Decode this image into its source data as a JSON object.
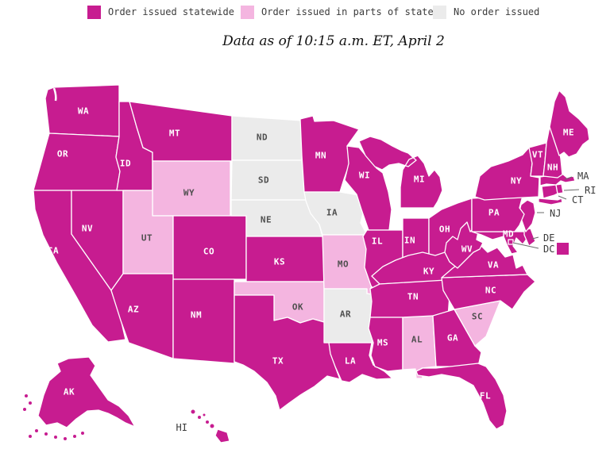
{
  "legend": {
    "items": [
      {
        "key": "statewide",
        "label": "Order issued statewide",
        "color": "#c71c90"
      },
      {
        "key": "parts",
        "label": "Order issued in parts of state",
        "color": "#f4b5e0"
      },
      {
        "key": "none",
        "label": "No order issued",
        "color": "#ebebeb"
      }
    ]
  },
  "subtitle": "Data as of 10:15 a.m. ET, April 2",
  "map": {
    "stroke_color": "#ffffff",
    "label_on_dark": "#ffffff",
    "label_on_light": "#4f4f4f",
    "callout_color": "#3a3a3a",
    "states": [
      {
        "abbr": "WA",
        "category": "statewide"
      },
      {
        "abbr": "OR",
        "category": "statewide"
      },
      {
        "abbr": "CA",
        "category": "statewide"
      },
      {
        "abbr": "NV",
        "category": "statewide"
      },
      {
        "abbr": "ID",
        "category": "statewide"
      },
      {
        "abbr": "MT",
        "category": "statewide"
      },
      {
        "abbr": "WY",
        "category": "parts"
      },
      {
        "abbr": "UT",
        "category": "parts"
      },
      {
        "abbr": "CO",
        "category": "statewide"
      },
      {
        "abbr": "AZ",
        "category": "statewide"
      },
      {
        "abbr": "NM",
        "category": "statewide"
      },
      {
        "abbr": "ND",
        "category": "none"
      },
      {
        "abbr": "SD",
        "category": "none"
      },
      {
        "abbr": "NE",
        "category": "none"
      },
      {
        "abbr": "KS",
        "category": "statewide"
      },
      {
        "abbr": "OK",
        "category": "parts"
      },
      {
        "abbr": "TX",
        "category": "statewide"
      },
      {
        "abbr": "MN",
        "category": "statewide"
      },
      {
        "abbr": "IA",
        "category": "none"
      },
      {
        "abbr": "MO",
        "category": "parts"
      },
      {
        "abbr": "AR",
        "category": "none"
      },
      {
        "abbr": "LA",
        "category": "statewide"
      },
      {
        "abbr": "WI",
        "category": "statewide"
      },
      {
        "abbr": "IL",
        "category": "statewide"
      },
      {
        "abbr": "MI",
        "category": "statewide"
      },
      {
        "abbr": "IN",
        "category": "statewide"
      },
      {
        "abbr": "OH",
        "category": "statewide"
      },
      {
        "abbr": "KY",
        "category": "statewide"
      },
      {
        "abbr": "TN",
        "category": "statewide"
      },
      {
        "abbr": "MS",
        "category": "statewide"
      },
      {
        "abbr": "AL",
        "category": "parts"
      },
      {
        "abbr": "GA",
        "category": "statewide"
      },
      {
        "abbr": "FL",
        "category": "statewide"
      },
      {
        "abbr": "SC",
        "category": "parts"
      },
      {
        "abbr": "NC",
        "category": "statewide"
      },
      {
        "abbr": "VA",
        "category": "statewide"
      },
      {
        "abbr": "WV",
        "category": "statewide"
      },
      {
        "abbr": "MD",
        "category": "statewide"
      },
      {
        "abbr": "DE",
        "category": "statewide"
      },
      {
        "abbr": "DC",
        "category": "statewide"
      },
      {
        "abbr": "NJ",
        "category": "statewide"
      },
      {
        "abbr": "PA",
        "category": "statewide"
      },
      {
        "abbr": "NY",
        "category": "statewide"
      },
      {
        "abbr": "CT",
        "category": "statewide"
      },
      {
        "abbr": "RI",
        "category": "statewide"
      },
      {
        "abbr": "MA",
        "category": "statewide"
      },
      {
        "abbr": "VT",
        "category": "statewide"
      },
      {
        "abbr": "NH",
        "category": "statewide"
      },
      {
        "abbr": "ME",
        "category": "statewide"
      },
      {
        "abbr": "AK",
        "category": "statewide"
      },
      {
        "abbr": "HI",
        "category": "statewide"
      }
    ]
  }
}
